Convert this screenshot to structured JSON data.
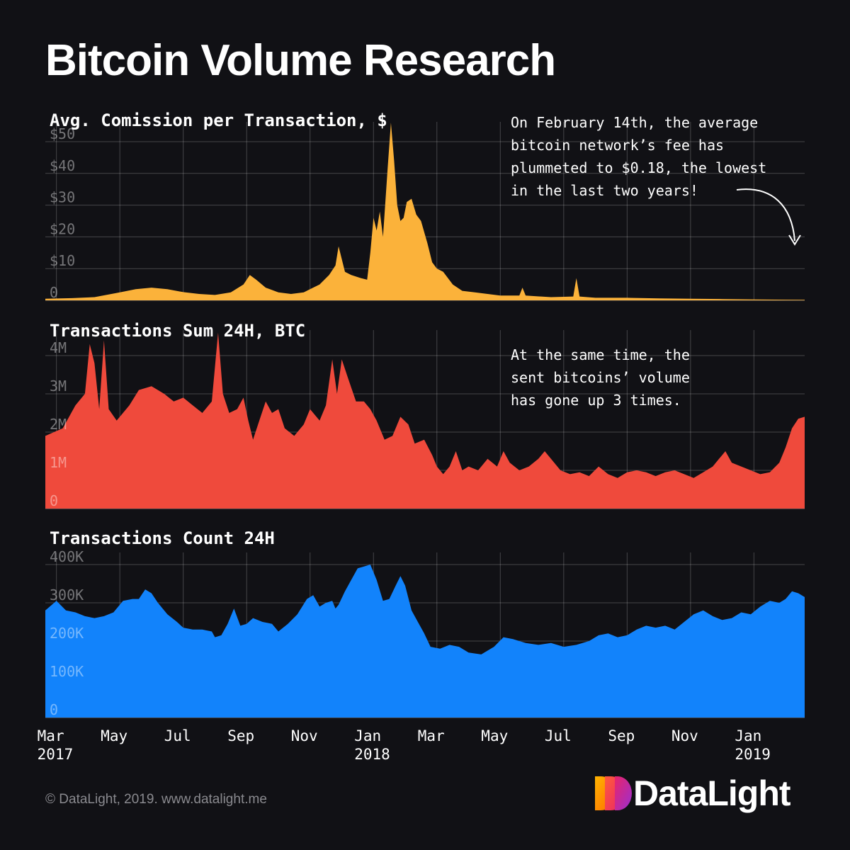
{
  "title": "Bitcoin Volume Research",
  "footer": "© DataLight, 2019. www.datalight.me",
  "logo": {
    "text": "DataLight",
    "colors": [
      "#ff8a00",
      "#e8246a",
      "#9b2fd1"
    ]
  },
  "chart_data": {
    "type": "area",
    "x_ticks": [
      {
        "label": "Mar",
        "year": "2017",
        "t": 0
      },
      {
        "label": "May",
        "year": "",
        "t": 2
      },
      {
        "label": "Jul",
        "year": "",
        "t": 4
      },
      {
        "label": "Sep",
        "year": "",
        "t": 6
      },
      {
        "label": "Nov",
        "year": "",
        "t": 8
      },
      {
        "label": "Jan",
        "year": "2018",
        "t": 10
      },
      {
        "label": "Mar",
        "year": "",
        "t": 12
      },
      {
        "label": "May",
        "year": "",
        "t": 14
      },
      {
        "label": "Jul",
        "year": "",
        "t": 16
      },
      {
        "label": "Sep",
        "year": "",
        "t": 18
      },
      {
        "label": "Nov",
        "year": "",
        "t": 20
      },
      {
        "label": "Jan",
        "year": "2019",
        "t": 22
      }
    ],
    "x_range": [
      -0.35,
      23.6
    ],
    "x_unit": "months since Mar 2017",
    "panels": [
      {
        "name": "commission",
        "title": "Avg. Comission per Transaction, $",
        "color": "#fbb23a",
        "ylim": [
          0,
          50
        ],
        "y_ticks": [
          0,
          10,
          20,
          30,
          40,
          50
        ],
        "y_labels": [
          "0",
          "$10",
          "$20",
          "$30",
          "$40",
          "$50"
        ],
        "annotation": [
          "On February 14th, the average",
          "bitcoin network’s fee has",
          "plummeted to $0.18, the lowest",
          "in the last two years!"
        ],
        "points": [
          [
            -0.35,
            0.5
          ],
          [
            0.5,
            0.7
          ],
          [
            1.2,
            1.0
          ],
          [
            2,
            2.5
          ],
          [
            2.5,
            3.5
          ],
          [
            3.0,
            4.0
          ],
          [
            3.5,
            3.5
          ],
          [
            4.0,
            2.6
          ],
          [
            4.5,
            2.0
          ],
          [
            5.0,
            1.7
          ],
          [
            5.5,
            2.5
          ],
          [
            5.9,
            5.0
          ],
          [
            6.1,
            8.0
          ],
          [
            6.3,
            6.5
          ],
          [
            6.6,
            4.0
          ],
          [
            7.0,
            2.5
          ],
          [
            7.4,
            2.0
          ],
          [
            7.8,
            2.5
          ],
          [
            8.0,
            3.5
          ],
          [
            8.3,
            5.0
          ],
          [
            8.6,
            8.0
          ],
          [
            8.8,
            11.0
          ],
          [
            8.9,
            17.0
          ],
          [
            9.0,
            13.0
          ],
          [
            9.1,
            9.0
          ],
          [
            9.3,
            8.0
          ],
          [
            9.6,
            7.0
          ],
          [
            9.8,
            6.5
          ],
          [
            9.9,
            15.0
          ],
          [
            10.0,
            26.0
          ],
          [
            10.1,
            22.0
          ],
          [
            10.2,
            28.0
          ],
          [
            10.3,
            20.0
          ],
          [
            10.45,
            42.0
          ],
          [
            10.55,
            56.0
          ],
          [
            10.65,
            44.0
          ],
          [
            10.75,
            30.0
          ],
          [
            10.85,
            25.0
          ],
          [
            10.95,
            26.0
          ],
          [
            11.05,
            31.0
          ],
          [
            11.2,
            32.0
          ],
          [
            11.35,
            27.0
          ],
          [
            11.5,
            25.0
          ],
          [
            11.7,
            18.0
          ],
          [
            11.85,
            12.0
          ],
          [
            12.0,
            10.0
          ],
          [
            12.2,
            9.0
          ],
          [
            12.5,
            5.0
          ],
          [
            12.8,
            3.0
          ],
          [
            13.2,
            2.5
          ],
          [
            13.6,
            2.0
          ],
          [
            14.0,
            1.5
          ],
          [
            14.6,
            1.5
          ],
          [
            14.7,
            4.0
          ],
          [
            14.8,
            1.5
          ],
          [
            15.6,
            1.0
          ],
          [
            16.3,
            1.2
          ],
          [
            16.4,
            7.0
          ],
          [
            16.5,
            1.2
          ],
          [
            17.0,
            0.8
          ],
          [
            18.0,
            0.8
          ],
          [
            19.0,
            0.6
          ],
          [
            20.0,
            0.5
          ],
          [
            21.0,
            0.4
          ],
          [
            22.0,
            0.3
          ],
          [
            23.0,
            0.2
          ],
          [
            23.6,
            0.18
          ]
        ]
      },
      {
        "name": "volume",
        "title": "Transactions Sum 24H, BTC",
        "color": "#ef4a3c",
        "ylim": [
          0,
          4000000
        ],
        "y_ticks": [
          0,
          1000000,
          2000000,
          3000000,
          4000000
        ],
        "y_labels": [
          "0",
          "1M",
          "2M",
          "3M",
          "4M"
        ],
        "annotation": [
          "At the same time, the",
          "sent bitcoins’ volume",
          "has gone up 3 times."
        ],
        "points": [
          [
            -0.35,
            1900000
          ],
          [
            0.2,
            2100000
          ],
          [
            0.6,
            2700000
          ],
          [
            0.9,
            3000000
          ],
          [
            1.05,
            4300000
          ],
          [
            1.2,
            3800000
          ],
          [
            1.35,
            2600000
          ],
          [
            1.5,
            4400000
          ],
          [
            1.65,
            2600000
          ],
          [
            1.9,
            2300000
          ],
          [
            2.3,
            2700000
          ],
          [
            2.6,
            3100000
          ],
          [
            3.0,
            3200000
          ],
          [
            3.4,
            3000000
          ],
          [
            3.7,
            2800000
          ],
          [
            4.0,
            2900000
          ],
          [
            4.3,
            2700000
          ],
          [
            4.6,
            2500000
          ],
          [
            4.9,
            2800000
          ],
          [
            5.1,
            4600000
          ],
          [
            5.25,
            3000000
          ],
          [
            5.45,
            2500000
          ],
          [
            5.7,
            2600000
          ],
          [
            5.9,
            2900000
          ],
          [
            6.05,
            2300000
          ],
          [
            6.2,
            1800000
          ],
          [
            6.4,
            2300000
          ],
          [
            6.6,
            2800000
          ],
          [
            6.8,
            2500000
          ],
          [
            7.0,
            2600000
          ],
          [
            7.2,
            2100000
          ],
          [
            7.5,
            1900000
          ],
          [
            7.8,
            2200000
          ],
          [
            8.0,
            2600000
          ],
          [
            8.3,
            2300000
          ],
          [
            8.5,
            2700000
          ],
          [
            8.7,
            3900000
          ],
          [
            8.85,
            3000000
          ],
          [
            9.0,
            3900000
          ],
          [
            9.2,
            3400000
          ],
          [
            9.45,
            2800000
          ],
          [
            9.7,
            2800000
          ],
          [
            9.9,
            2600000
          ],
          [
            10.1,
            2300000
          ],
          [
            10.35,
            1800000
          ],
          [
            10.6,
            1900000
          ],
          [
            10.85,
            2400000
          ],
          [
            11.1,
            2200000
          ],
          [
            11.3,
            1700000
          ],
          [
            11.6,
            1800000
          ],
          [
            11.85,
            1400000
          ],
          [
            12.0,
            1100000
          ],
          [
            12.2,
            900000
          ],
          [
            12.4,
            1100000
          ],
          [
            12.6,
            1500000
          ],
          [
            12.8,
            1000000
          ],
          [
            13.0,
            1100000
          ],
          [
            13.3,
            1000000
          ],
          [
            13.6,
            1300000
          ],
          [
            13.9,
            1100000
          ],
          [
            14.1,
            1500000
          ],
          [
            14.3,
            1200000
          ],
          [
            14.6,
            1000000
          ],
          [
            14.9,
            1100000
          ],
          [
            15.2,
            1300000
          ],
          [
            15.4,
            1500000
          ],
          [
            15.6,
            1300000
          ],
          [
            15.9,
            1000000
          ],
          [
            16.2,
            900000
          ],
          [
            16.5,
            950000
          ],
          [
            16.8,
            850000
          ],
          [
            17.1,
            1100000
          ],
          [
            17.4,
            900000
          ],
          [
            17.7,
            800000
          ],
          [
            18.0,
            950000
          ],
          [
            18.3,
            1000000
          ],
          [
            18.6,
            950000
          ],
          [
            18.9,
            850000
          ],
          [
            19.2,
            950000
          ],
          [
            19.5,
            1000000
          ],
          [
            19.8,
            900000
          ],
          [
            20.1,
            800000
          ],
          [
            20.4,
            950000
          ],
          [
            20.7,
            1100000
          ],
          [
            20.9,
            1300000
          ],
          [
            21.1,
            1500000
          ],
          [
            21.3,
            1200000
          ],
          [
            21.6,
            1100000
          ],
          [
            21.9,
            1000000
          ],
          [
            22.2,
            900000
          ],
          [
            22.5,
            950000
          ],
          [
            22.8,
            1200000
          ],
          [
            23.0,
            1600000
          ],
          [
            23.2,
            2100000
          ],
          [
            23.4,
            2350000
          ],
          [
            23.6,
            2400000
          ]
        ]
      },
      {
        "name": "count",
        "title": "Transactions Count 24H",
        "color": "#1283fb",
        "ylim": [
          0,
          400000
        ],
        "y_ticks": [
          0,
          100000,
          200000,
          300000,
          400000
        ],
        "y_labels": [
          "0",
          "100K",
          "200K",
          "300K",
          "400K"
        ],
        "points": [
          [
            -0.35,
            280000
          ],
          [
            0,
            305000
          ],
          [
            0.3,
            280000
          ],
          [
            0.6,
            275000
          ],
          [
            0.9,
            265000
          ],
          [
            1.2,
            260000
          ],
          [
            1.5,
            265000
          ],
          [
            1.8,
            275000
          ],
          [
            2.1,
            305000
          ],
          [
            2.4,
            310000
          ],
          [
            2.6,
            310000
          ],
          [
            2.8,
            335000
          ],
          [
            3.0,
            325000
          ],
          [
            3.2,
            300000
          ],
          [
            3.5,
            270000
          ],
          [
            3.8,
            250000
          ],
          [
            4.0,
            235000
          ],
          [
            4.3,
            230000
          ],
          [
            4.6,
            230000
          ],
          [
            4.9,
            225000
          ],
          [
            5.0,
            210000
          ],
          [
            5.2,
            215000
          ],
          [
            5.4,
            245000
          ],
          [
            5.6,
            285000
          ],
          [
            5.8,
            240000
          ],
          [
            6.0,
            245000
          ],
          [
            6.2,
            260000
          ],
          [
            6.5,
            250000
          ],
          [
            6.8,
            245000
          ],
          [
            7.0,
            225000
          ],
          [
            7.3,
            245000
          ],
          [
            7.6,
            270000
          ],
          [
            7.9,
            310000
          ],
          [
            8.1,
            320000
          ],
          [
            8.3,
            290000
          ],
          [
            8.5,
            300000
          ],
          [
            8.7,
            305000
          ],
          [
            8.8,
            285000
          ],
          [
            8.9,
            295000
          ],
          [
            9.1,
            330000
          ],
          [
            9.3,
            360000
          ],
          [
            9.5,
            390000
          ],
          [
            9.7,
            395000
          ],
          [
            9.9,
            400000
          ],
          [
            10.1,
            360000
          ],
          [
            10.3,
            305000
          ],
          [
            10.5,
            310000
          ],
          [
            10.7,
            345000
          ],
          [
            10.85,
            370000
          ],
          [
            11.0,
            345000
          ],
          [
            11.2,
            280000
          ],
          [
            11.4,
            250000
          ],
          [
            11.6,
            220000
          ],
          [
            11.8,
            185000
          ],
          [
            12.1,
            180000
          ],
          [
            12.4,
            190000
          ],
          [
            12.7,
            185000
          ],
          [
            13.0,
            170000
          ],
          [
            13.4,
            165000
          ],
          [
            13.8,
            185000
          ],
          [
            14.1,
            210000
          ],
          [
            14.4,
            205000
          ],
          [
            14.8,
            195000
          ],
          [
            15.2,
            190000
          ],
          [
            15.6,
            195000
          ],
          [
            16.0,
            185000
          ],
          [
            16.4,
            190000
          ],
          [
            16.8,
            200000
          ],
          [
            17.1,
            215000
          ],
          [
            17.4,
            220000
          ],
          [
            17.7,
            210000
          ],
          [
            18.0,
            215000
          ],
          [
            18.3,
            230000
          ],
          [
            18.6,
            240000
          ],
          [
            18.9,
            235000
          ],
          [
            19.2,
            240000
          ],
          [
            19.5,
            230000
          ],
          [
            19.8,
            250000
          ],
          [
            20.1,
            270000
          ],
          [
            20.4,
            280000
          ],
          [
            20.7,
            265000
          ],
          [
            21.0,
            255000
          ],
          [
            21.3,
            260000
          ],
          [
            21.6,
            275000
          ],
          [
            21.9,
            270000
          ],
          [
            22.2,
            290000
          ],
          [
            22.5,
            305000
          ],
          [
            22.8,
            300000
          ],
          [
            23.0,
            310000
          ],
          [
            23.2,
            330000
          ],
          [
            23.4,
            325000
          ],
          [
            23.6,
            315000
          ]
        ]
      }
    ]
  }
}
